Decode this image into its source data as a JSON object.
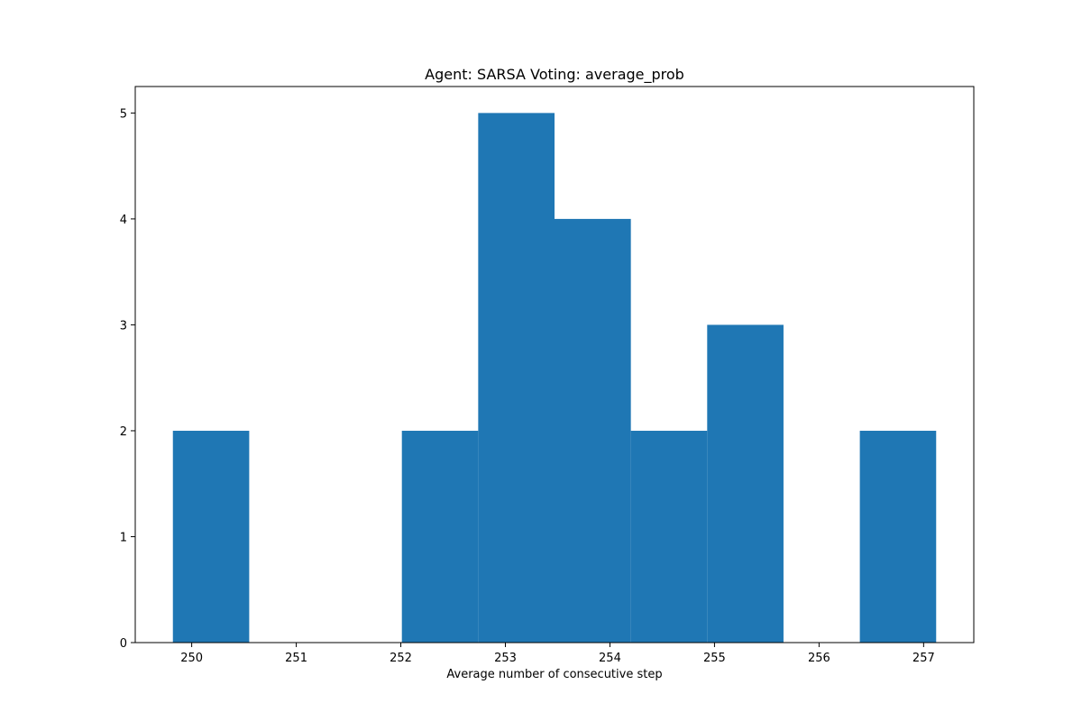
{
  "chart_data": {
    "type": "bar",
    "subtype": "histogram",
    "title": "Agent: SARSA Voting: average_prob",
    "xlabel": "Average number of consecutive step",
    "ylabel": "",
    "color": "#1f77b4",
    "bins": [
      {
        "x0": 249.82,
        "x1": 250.55,
        "count": 2
      },
      {
        "x0": 250.55,
        "x1": 251.28,
        "count": 0
      },
      {
        "x0": 251.28,
        "x1": 252.01,
        "count": 0
      },
      {
        "x0": 252.01,
        "x1": 252.74,
        "count": 2
      },
      {
        "x0": 252.74,
        "x1": 253.47,
        "count": 5
      },
      {
        "x0": 253.47,
        "x1": 254.2,
        "count": 4
      },
      {
        "x0": 254.2,
        "x1": 254.93,
        "count": 2
      },
      {
        "x0": 254.93,
        "x1": 255.66,
        "count": 3
      },
      {
        "x0": 255.66,
        "x1": 256.39,
        "count": 0
      },
      {
        "x0": 256.39,
        "x1": 257.12,
        "count": 2
      }
    ],
    "xlim": [
      249.46,
      257.48
    ],
    "ylim": [
      0,
      5.25
    ],
    "xticks": [
      250,
      251,
      252,
      253,
      254,
      255,
      256,
      257
    ],
    "yticks": [
      0,
      1,
      2,
      3,
      4,
      5
    ],
    "grid": false,
    "legend": "none"
  }
}
